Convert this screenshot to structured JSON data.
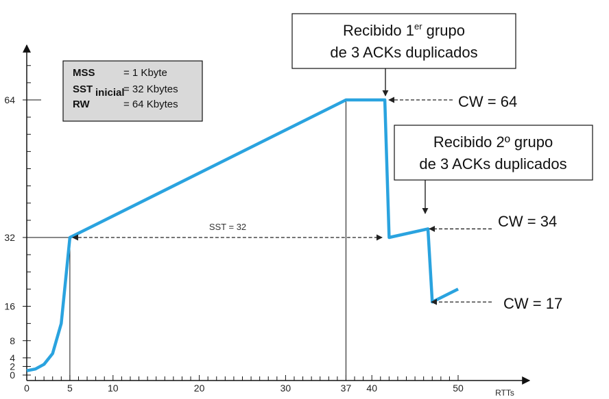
{
  "chart_data": {
    "type": "line",
    "xlabel": "RTTs",
    "ylabel": "",
    "x_ticks": [
      {
        "value": 0,
        "label": "0"
      },
      {
        "value": 5,
        "label": "5"
      },
      {
        "value": 10,
        "label": "10"
      },
      {
        "value": 20,
        "label": "20"
      },
      {
        "value": 30,
        "label": "30"
      },
      {
        "value": 37,
        "label": "37"
      },
      {
        "value": 40,
        "label": "40"
      },
      {
        "value": 50,
        "label": "50"
      }
    ],
    "x_minor_ticks": [
      1,
      2,
      3,
      4,
      6,
      7,
      8,
      9,
      11,
      12,
      13,
      14,
      15,
      16,
      17,
      18,
      19,
      21,
      22,
      23,
      24,
      25,
      26,
      27,
      28,
      29,
      31,
      32,
      33,
      34,
      35,
      36,
      38,
      39,
      41,
      42,
      43,
      44,
      45,
      46,
      47,
      48,
      49
    ],
    "y_ticks": [
      {
        "value": 0,
        "label": "0"
      },
      {
        "value": 2,
        "label": "2"
      },
      {
        "value": 4,
        "label": "4"
      },
      {
        "value": 8,
        "label": "8"
      },
      {
        "value": 16,
        "label": "16"
      },
      {
        "value": 32,
        "label": "32"
      },
      {
        "value": 64,
        "label": "64"
      }
    ],
    "y_minor_ticks": [
      12,
      20,
      24,
      28,
      36,
      40,
      44,
      48,
      52,
      56,
      60,
      68,
      72
    ],
    "xlim": [
      0,
      55
    ],
    "ylim": [
      0,
      76
    ],
    "color": "#2aa3df",
    "series": [
      {
        "values": [
          [
            0,
            1
          ],
          [
            1,
            1.4
          ],
          [
            2,
            2.5
          ],
          [
            3,
            5
          ],
          [
            4,
            12
          ],
          [
            5,
            32
          ],
          [
            37,
            64
          ],
          [
            41.5,
            64
          ],
          [
            42,
            32
          ],
          [
            46.5,
            34
          ],
          [
            47,
            17
          ],
          [
            50,
            20
          ]
        ]
      }
    ],
    "guides": {
      "vertical_at_x": [
        5,
        37
      ],
      "horizontal_at_y": [
        32
      ]
    },
    "sst_arrow": {
      "from_x": 5,
      "to_x": 41.5,
      "y": 32,
      "label": "SST = 32"
    },
    "info_box": {
      "rows": [
        {
          "key": "MSS",
          "value": "= 1 Kbyte"
        },
        {
          "key": "SST",
          "subscript": "inicial",
          "value": "= 32 Kbytes"
        },
        {
          "key": "RW",
          "value": "= 64 Kbytes"
        }
      ]
    },
    "callouts": [
      {
        "lines": [
          "Recibido 1",
          "er",
          " grupo",
          "de 3 ACKs duplicados"
        ],
        "point_x": 41.5,
        "point_y": 64
      },
      {
        "lines": [
          "Recibido 2º grupo",
          "de 3 ACKs duplicados"
        ],
        "point_x": 46.5,
        "point_y": 34
      }
    ],
    "cw_annotations": [
      {
        "label": "CW = 64",
        "x": 41.5,
        "y": 64
      },
      {
        "label": "CW = 34",
        "x": 46.5,
        "y": 34
      },
      {
        "label": "CW = 17",
        "x": 47,
        "y": 17
      }
    ]
  }
}
